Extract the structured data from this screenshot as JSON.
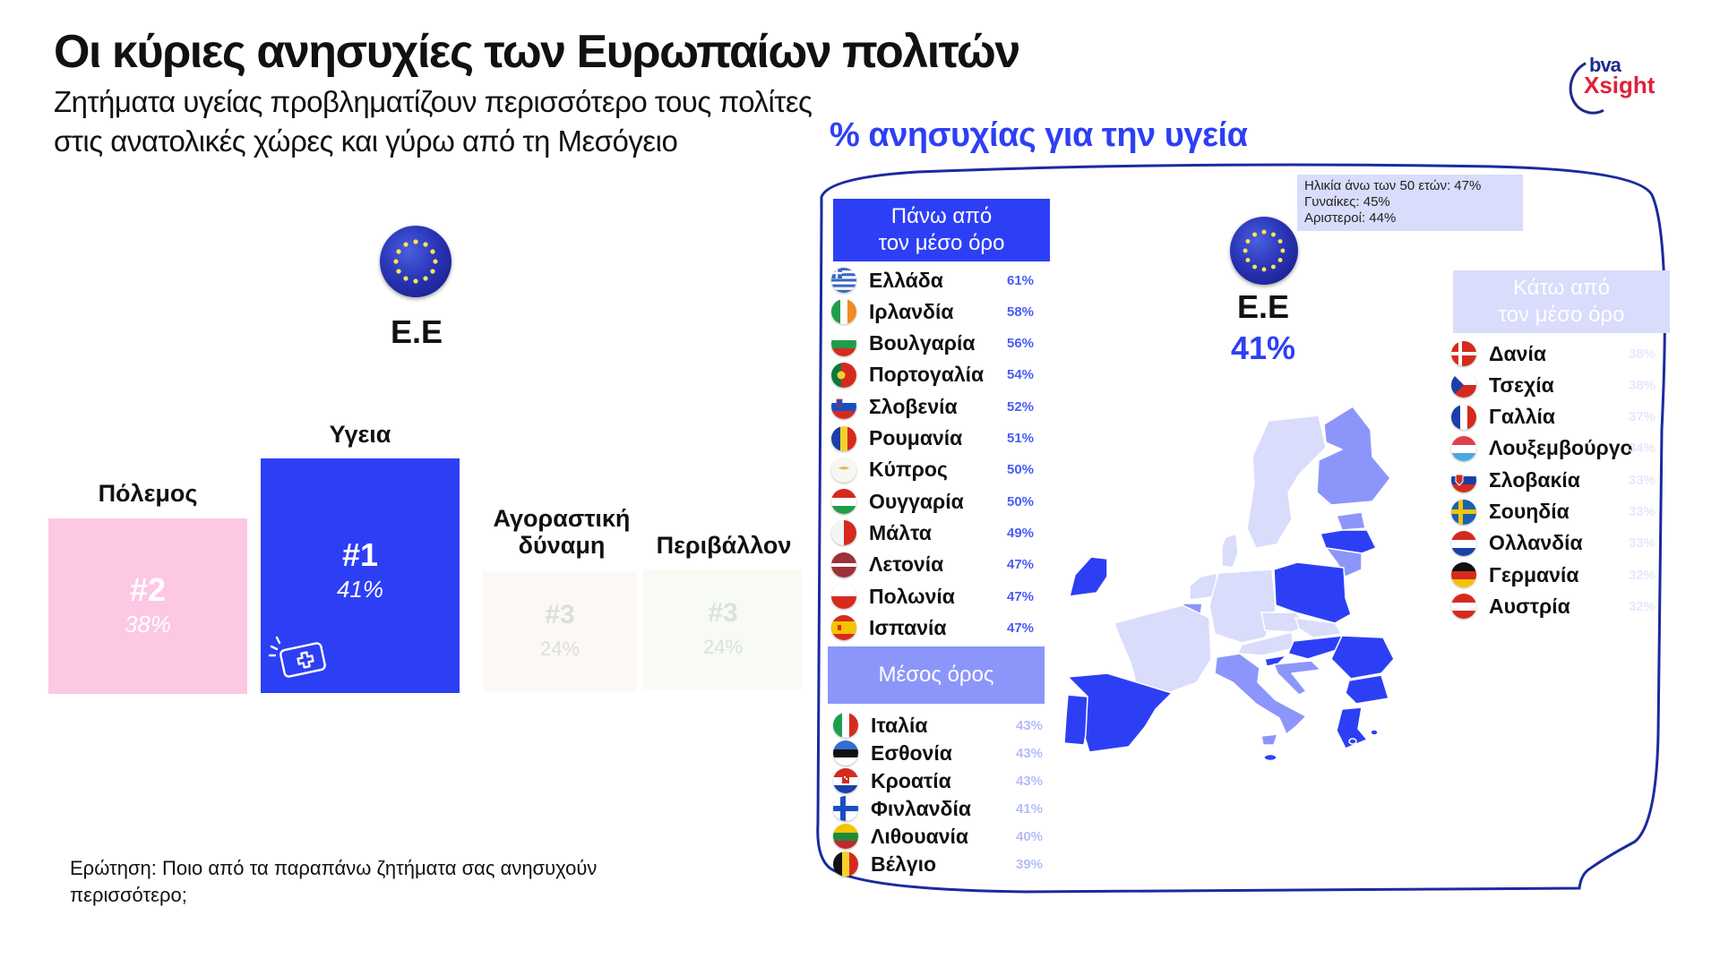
{
  "header": {
    "title": "Οι κύριες ανησυχίες των Ευρωπαίων πολιτών",
    "subtitle_line1": "Ζητήματα υγείας προβληματίζουν περισσότερο τους πολίτες",
    "subtitle_line2": "στις ανατολικές χώρες και γύρω από τη Μεσόγειο"
  },
  "logo": {
    "top": "bva",
    "bottom": "Xsight"
  },
  "left_panel": {
    "region_label": "Ε.Ε",
    "categories": [
      {
        "label": "Πόλεμος",
        "rank": "#2",
        "pct": "38%",
        "bg": "#fcc8e4",
        "fg": "#ffffff"
      },
      {
        "label": "Υγεια",
        "rank": "#1",
        "pct": "41%",
        "bg": "#2d3ff5",
        "fg": "#ffffff"
      },
      {
        "label_line1": "Αγοραστική",
        "label_line2": "δύναμη",
        "rank": "#3",
        "pct": "24%",
        "bg": "#fdf8f4",
        "fg": "#d9e0dc"
      },
      {
        "label": "Περιβάλλον",
        "rank": "#3",
        "pct": "24%",
        "bg": "#f8fbf4",
        "fg": "#d9e2dc"
      }
    ],
    "question_line1": "Ερώτηση: Ποιο από τα παραπάνω ζητήματα σας ανησυχούν",
    "question_line2": "περισσότερο;"
  },
  "map_panel": {
    "title": "% ανησυχίας για την υγεία",
    "info_line1": "Ηλικία άνω των 50 ετών: 47%",
    "info_line2": "Γυναίκες: 45%",
    "info_line3": "Αριστεροί: 44%",
    "eu_label": "Ε.Ε",
    "eu_value": "41%",
    "above": {
      "header_line1": "Πάνω από",
      "header_line2": "τον μέσο όρο",
      "header_bg": "#2d3ff5",
      "rows": [
        {
          "name": "Ελλάδα",
          "value": "61%"
        },
        {
          "name": "Ιρλανδία",
          "value": "58%"
        },
        {
          "name": "Βουλγαρία",
          "value": "56%"
        },
        {
          "name": "Πορτογαλία",
          "value": "54%"
        },
        {
          "name": "Σλοβενία",
          "value": "52%"
        },
        {
          "name": "Ρουμανία",
          "value": "51%"
        },
        {
          "name": "Κύπρος",
          "value": "50%"
        },
        {
          "name": "Ουγγαρία",
          "value": "50%"
        },
        {
          "name": "Μάλτα",
          "value": "49%"
        },
        {
          "name": "Λετονία",
          "value": "47%"
        },
        {
          "name": "Πολωνία",
          "value": "47%"
        },
        {
          "name": "Ισπανία",
          "value": "47%"
        }
      ]
    },
    "average": {
      "header": "Μέσος όρος",
      "header_bg": "#8c96fa",
      "rows": [
        {
          "name": "Ιταλία",
          "value": "43%"
        },
        {
          "name": "Εσθονία",
          "value": "43%"
        },
        {
          "name": "Κροατία",
          "value": "43%"
        },
        {
          "name": "Φινλανδία",
          "value": "41%"
        },
        {
          "name": "Λιθουανία",
          "value": "40%"
        },
        {
          "name": "Βέλγιο",
          "value": "39%"
        }
      ]
    },
    "below": {
      "header_line1": "Κάτω από",
      "header_line2": "τον μέσο όρο",
      "header_bg": "#d9dcfb",
      "rows": [
        {
          "name": "Δανία",
          "value": "38%"
        },
        {
          "name": "Τσεχία",
          "value": "38%"
        },
        {
          "name": "Γαλλία",
          "value": "37%"
        },
        {
          "name": "Λουξεμβούργο",
          "value": "34%"
        },
        {
          "name": "Σλοβακία",
          "value": "33%"
        },
        {
          "name": "Σουηδία",
          "value": "33%"
        },
        {
          "name": "Ολλανδία",
          "value": "33%"
        },
        {
          "name": "Γερμανία",
          "value": "32%"
        },
        {
          "name": "Αυστρία",
          "value": "32%"
        }
      ]
    }
  },
  "colors": {
    "accent_blue": "#2d3ff5",
    "mid_blue": "#8c96fa",
    "light_blue": "#d9dcfb",
    "pink": "#fcc8e4",
    "frame": "#1a2aa0"
  },
  "chart_data": [
    {
      "type": "bar",
      "title": "Οι κύριες ανησυχίες των Ευρωπαίων πολιτών (Ε.Ε)",
      "categories": [
        "Πόλεμος",
        "Υγεια",
        "Αγοραστική δύναμη",
        "Περιβάλλον"
      ],
      "values": [
        38,
        41,
        24,
        24
      ],
      "ranks": [
        "#2",
        "#1",
        "#3",
        "#3"
      ],
      "ylabel": "%",
      "xlabel": ""
    },
    {
      "type": "table",
      "title": "% ανησυχίας για την υγεία",
      "eu_average": 41,
      "subgroups": {
        "Ηλικία άνω των 50 ετών": 47,
        "Γυναίκες": 45,
        "Αριστεροί": 44
      },
      "groups": [
        {
          "name": "Πάνω από τον μέσο όρο",
          "countries": [
            "Ελλάδα",
            "Ιρλανδία",
            "Βουλγαρία",
            "Πορτογαλία",
            "Σλοβενία",
            "Ρουμανία",
            "Κύπρος",
            "Ουγγαρία",
            "Μάλτα",
            "Λετονία",
            "Πολωνία",
            "Ισπανία"
          ],
          "values": [
            61,
            58,
            56,
            54,
            52,
            51,
            50,
            50,
            49,
            47,
            47,
            47
          ]
        },
        {
          "name": "Μέσος όρος",
          "countries": [
            "Ιταλία",
            "Εσθονία",
            "Κροατία",
            "Φινλανδία",
            "Λιθουανία",
            "Βέλγιο"
          ],
          "values": [
            43,
            43,
            43,
            41,
            40,
            39
          ]
        },
        {
          "name": "Κάτω από τον μέσο όρο",
          "countries": [
            "Δανία",
            "Τσεχία",
            "Γαλλία",
            "Λουξεμβούργο",
            "Σλοβακία",
            "Σουηδία",
            "Ολλανδία",
            "Γερμανία",
            "Αυστρία"
          ],
          "values": [
            38,
            38,
            37,
            34,
            33,
            33,
            33,
            32,
            32
          ]
        }
      ]
    }
  ]
}
